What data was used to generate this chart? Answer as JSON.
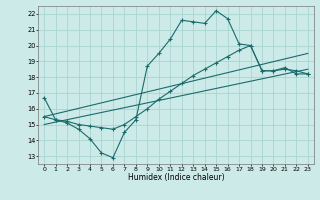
{
  "xlabel": "Humidex (Indice chaleur)",
  "background_color": "#cceae8",
  "grid_color": "#aad4d2",
  "line_color": "#1a6b6b",
  "xlim": [
    -0.5,
    23.5
  ],
  "ylim": [
    12.5,
    22.5
  ],
  "yticks": [
    13,
    14,
    15,
    16,
    17,
    18,
    19,
    20,
    21,
    22
  ],
  "xticks": [
    0,
    1,
    2,
    3,
    4,
    5,
    6,
    7,
    8,
    9,
    10,
    11,
    12,
    13,
    14,
    15,
    16,
    17,
    18,
    19,
    20,
    21,
    22,
    23
  ],
  "series1_x": [
    0,
    1,
    2,
    3,
    4,
    5,
    6,
    7,
    8,
    9,
    10,
    11,
    12,
    13,
    14,
    15,
    16,
    17,
    18,
    19,
    20,
    21,
    22,
    23
  ],
  "series1_y": [
    16.7,
    15.3,
    15.1,
    14.7,
    14.1,
    13.2,
    12.9,
    14.5,
    15.3,
    18.7,
    19.5,
    20.4,
    21.6,
    21.5,
    21.4,
    22.2,
    21.7,
    20.1,
    20.0,
    18.4,
    18.4,
    18.6,
    18.2,
    18.2
  ],
  "series2_x": [
    0,
    1,
    2,
    3,
    4,
    5,
    6,
    7,
    8,
    9,
    10,
    11,
    12,
    13,
    14,
    15,
    16,
    17,
    18,
    19,
    20,
    21,
    22,
    23
  ],
  "series2_y": [
    15.5,
    15.3,
    15.2,
    15.0,
    14.9,
    14.8,
    14.7,
    15.0,
    15.5,
    16.0,
    16.6,
    17.1,
    17.6,
    18.1,
    18.5,
    18.9,
    19.3,
    19.7,
    20.0,
    18.4,
    18.4,
    18.5,
    18.4,
    18.2
  ],
  "series3_x": [
    0,
    23
  ],
  "series3_y": [
    15.0,
    18.5
  ],
  "series4_x": [
    0,
    23
  ],
  "series4_y": [
    15.5,
    19.5
  ]
}
